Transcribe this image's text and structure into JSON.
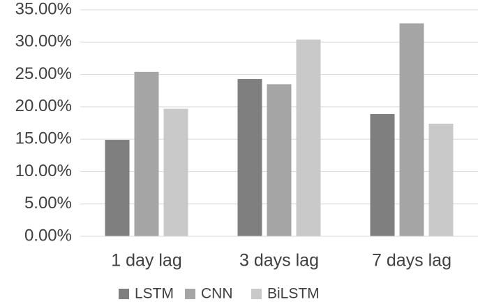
{
  "chart_data": {
    "type": "bar",
    "categories": [
      "1 day lag",
      "3 days lag",
      "7 days lag"
    ],
    "series": [
      {
        "name": "LSTM",
        "color": "#7f7f7f",
        "values": [
          14.9,
          24.3,
          18.9
        ]
      },
      {
        "name": "CNN",
        "color": "#a5a5a5",
        "values": [
          25.4,
          23.5,
          32.9
        ]
      },
      {
        "name": "BiLSTM",
        "color": "#c9c9c9",
        "values": [
          19.7,
          30.4,
          17.4
        ]
      }
    ],
    "ylim": [
      0,
      35
    ],
    "yticks": [
      {
        "value": 0,
        "label": "0.00%"
      },
      {
        "value": 5,
        "label": "5.00%"
      },
      {
        "value": 10,
        "label": "10.00%"
      },
      {
        "value": 15,
        "label": "15.00%"
      },
      {
        "value": 20,
        "label": "20.00%"
      },
      {
        "value": 25,
        "label": "25.00%"
      },
      {
        "value": 30,
        "label": "30.00%"
      },
      {
        "value": 35,
        "label": "35.00%"
      }
    ],
    "grid": true,
    "legend": "bottom"
  }
}
